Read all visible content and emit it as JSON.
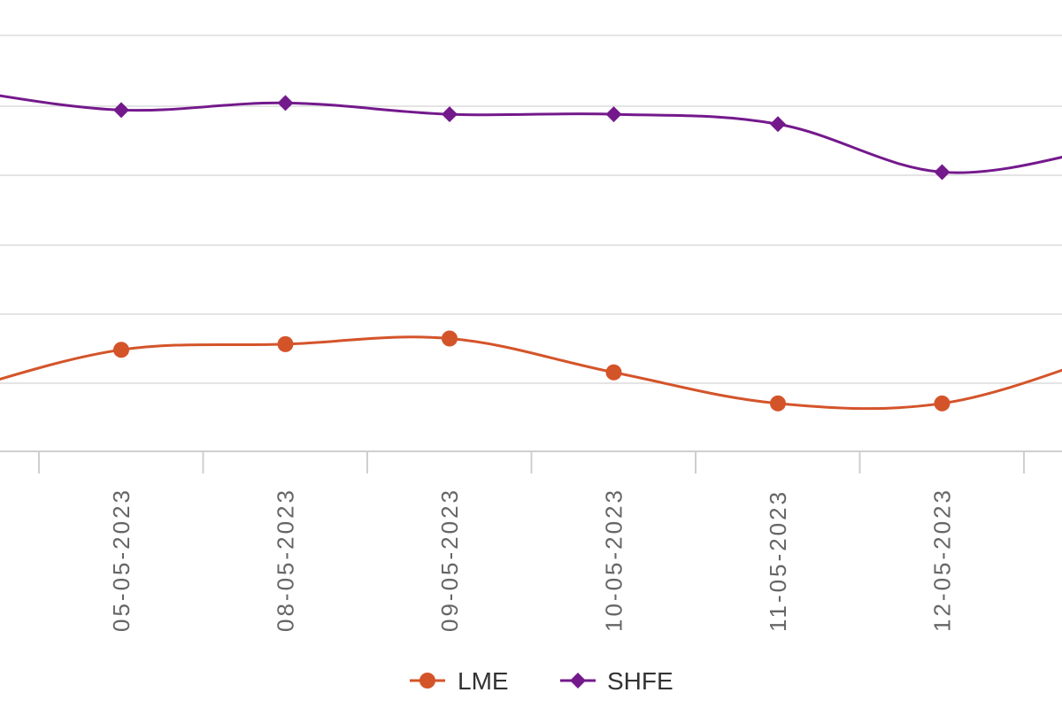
{
  "chart_data": {
    "type": "line",
    "x_categories": [
      "05-05-2023",
      "08-05-2023",
      "09-05-2023",
      "10-05-2023",
      "11-05-2023",
      "12-05-2023"
    ],
    "series": [
      {
        "name": "LME",
        "color": "#d4542a",
        "marker": "circle",
        "values": [
          2.6,
          2.8,
          3.0,
          1.8,
          0.7,
          0.7
        ]
      },
      {
        "name": "SHFE",
        "color": "#74198c",
        "marker": "diamond",
        "values": [
          11.1,
          11.35,
          10.95,
          10.95,
          10.6,
          8.9
        ]
      }
    ],
    "ylim": [
      -1,
      15
    ],
    "grid": true,
    "legend_position": "bottom-center"
  }
}
